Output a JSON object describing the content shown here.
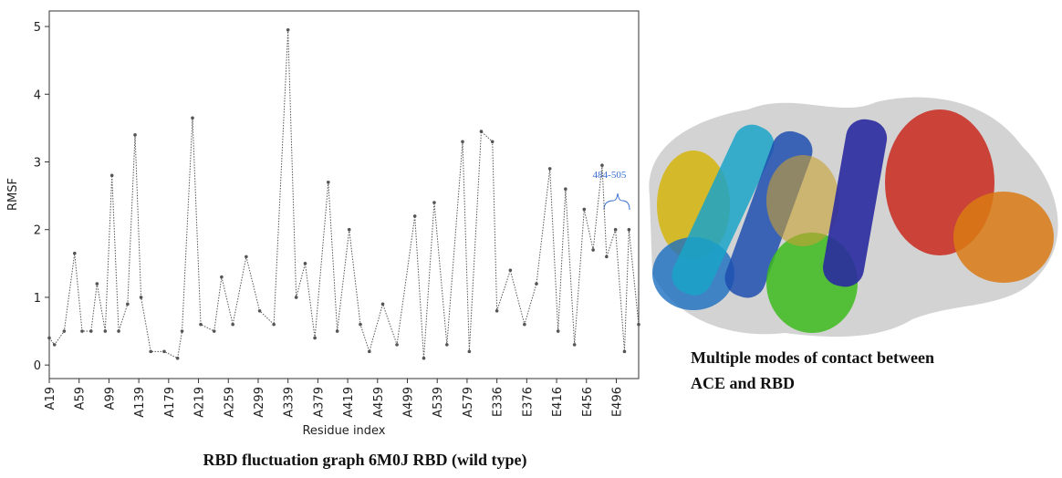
{
  "chart_data": {
    "type": "line",
    "caption": "RBD fluctuation graph 6M0J  RBD (wild  type)",
    "x_label": "Residue index",
    "y_label": "RMSF",
    "annotation": "484-505",
    "side_caption": [
      "Multiple modes of contact between",
      "ACE and RBD"
    ],
    "xlim": [
      0,
      790
    ],
    "ylim": [
      -0.2,
      5.23
    ],
    "yticks": [
      0,
      1,
      2,
      3,
      4,
      5
    ],
    "xticks": [
      {
        "value": 0,
        "label": "A19"
      },
      {
        "value": 40,
        "label": "A59"
      },
      {
        "value": 80,
        "label": "A99"
      },
      {
        "value": 120,
        "label": "A139"
      },
      {
        "value": 160,
        "label": "A179"
      },
      {
        "value": 200,
        "label": "A219"
      },
      {
        "value": 240,
        "label": "A259"
      },
      {
        "value": 280,
        "label": "A299"
      },
      {
        "value": 320,
        "label": "A339"
      },
      {
        "value": 360,
        "label": "A379"
      },
      {
        "value": 400,
        "label": "A419"
      },
      {
        "value": 440,
        "label": "A459"
      },
      {
        "value": 480,
        "label": "A499"
      },
      {
        "value": 520,
        "label": "A539"
      },
      {
        "value": 560,
        "label": "A579"
      },
      {
        "value": 600,
        "label": "E336"
      },
      {
        "value": 640,
        "label": "E376"
      },
      {
        "value": 680,
        "label": "E416"
      },
      {
        "value": 720,
        "label": "E456"
      },
      {
        "value": 760,
        "label": "E496"
      }
    ],
    "series": [
      {
        "color": "#555555",
        "x": [
          0,
          7,
          20,
          34,
          44,
          56,
          64,
          75,
          84,
          93,
          105,
          115,
          123,
          136,
          154,
          172,
          178,
          192,
          203,
          221,
          231,
          246,
          264,
          282,
          301,
          320,
          331,
          343,
          356,
          374,
          386,
          402,
          417,
          429,
          447,
          466,
          490,
          502,
          516,
          533,
          554,
          563,
          579,
          594,
          600,
          618,
          637,
          653,
          671,
          682,
          692,
          704,
          717,
          729,
          741,
          747,
          759,
          771,
          777,
          790
        ],
        "values": [
          0.4,
          0.3,
          0.5,
          1.65,
          0.5,
          0.5,
          1.2,
          0.5,
          2.8,
          0.5,
          0.9,
          3.4,
          1.0,
          0.2,
          0.2,
          0.1,
          0.5,
          3.65,
          0.6,
          0.5,
          1.3,
          0.6,
          1.6,
          0.8,
          0.6,
          4.95,
          1.0,
          1.5,
          0.4,
          2.7,
          0.5,
          2.0,
          0.6,
          0.2,
          0.9,
          0.3,
          2.2,
          0.1,
          2.4,
          0.3,
          3.3,
          0.2,
          3.45,
          3.3,
          0.8,
          1.4,
          0.6,
          1.2,
          2.9,
          0.5,
          2.6,
          0.3,
          2.3,
          1.7,
          2.95,
          1.6,
          2.0,
          0.2,
          2.0,
          0.6
        ]
      }
    ]
  }
}
